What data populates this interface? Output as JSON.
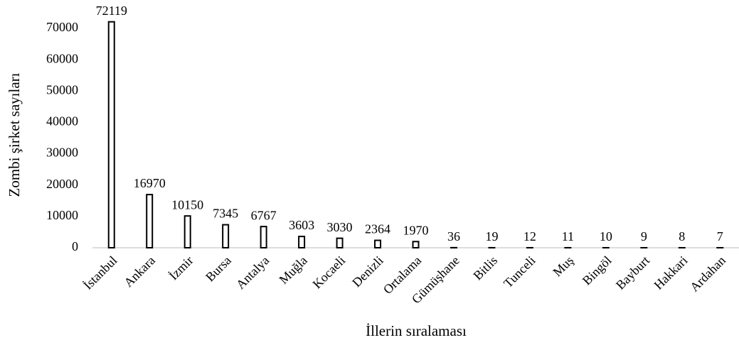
{
  "chart_data": {
    "type": "bar",
    "x_label": "İllerin sıralaması",
    "y_label": "Zombi şirket sayıları",
    "categories": [
      "İstanbul",
      "Ankara",
      "İzmir",
      "Bursa",
      "Antalya",
      "Muğla",
      "Kocaeli",
      "Denizli",
      "Ortalama",
      "Gümüşhane",
      "Bitlis",
      "Tunceli",
      "Muş",
      "Bingöl",
      "Bayburt",
      "Hakkari",
      "Ardahan"
    ],
    "values": [
      72119,
      16970,
      10150,
      7345,
      6767,
      3603,
      3030,
      2364,
      1970,
      36,
      19,
      12,
      11,
      10,
      9,
      8,
      7
    ],
    "color": "#000000",
    "ylim": [
      0,
      75000
    ],
    "yticks": [
      0,
      10000,
      20000,
      30000,
      40000,
      50000,
      60000,
      70000
    ],
    "grid": false
  }
}
